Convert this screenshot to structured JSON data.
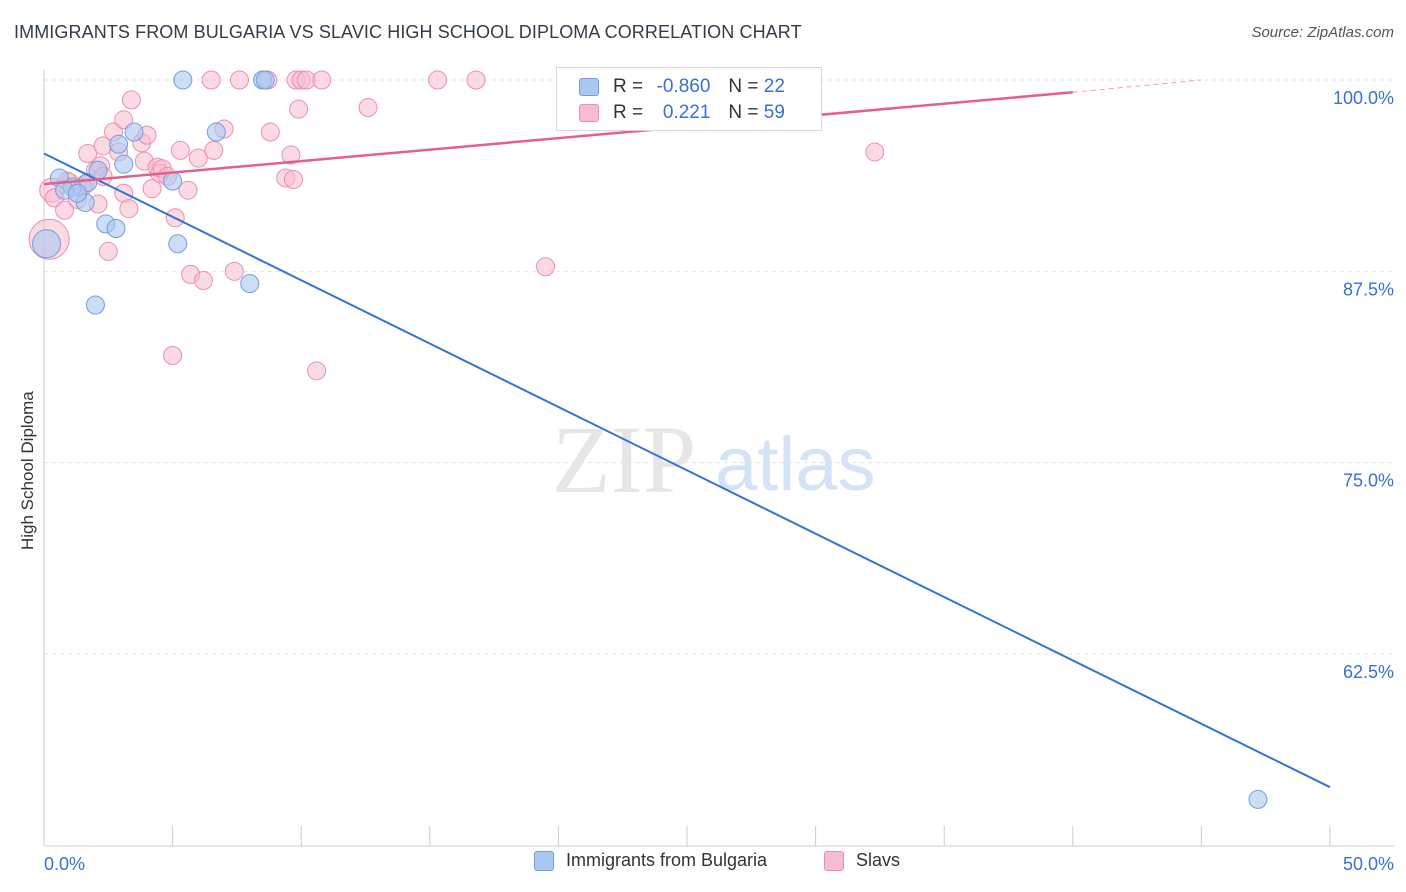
{
  "header": {
    "title": "IMMIGRANTS FROM BULGARIA VS SLAVIC HIGH SCHOOL DIPLOMA CORRELATION CHART",
    "source": "Source: ZipAtlas.com"
  },
  "watermark": {
    "zip": "ZIP",
    "atlas": "atlas"
  },
  "stats_legend": {
    "rows": [
      {
        "r_label": "R =",
        "r_value": "-0.860",
        "n_label": "N =",
        "n_value": "22"
      },
      {
        "r_label": "R =",
        "r_value": "0.221",
        "n_label": "N =",
        "n_value": "59"
      }
    ]
  },
  "colors": {
    "blue_fill": "#aac8f0",
    "blue_stroke": "#6f9fe0",
    "blue_line": "#3274d6",
    "pink_fill": "#f7bccd",
    "pink_stroke": "#ec8fad",
    "pink_line": "#e4608a",
    "tick_label": "#3a6fd8",
    "grid": "#e3e3e3"
  },
  "chart_data": {
    "type": "scatter",
    "title": "IMMIGRANTS FROM BULGARIA VS SLAVIC HIGH SCHOOL DIPLOMA CORRELATION CHART",
    "xlabel": "",
    "ylabel": "High School Diploma",
    "xlim": [
      0,
      50
    ],
    "ylim": [
      50.5,
      101
    ],
    "x_tick_labels": [
      "0.0%",
      "50.0%"
    ],
    "y_ticks": [
      {
        "value": 100,
        "label": "100.0%"
      },
      {
        "value": 87.5,
        "label": "87.5%"
      },
      {
        "value": 75,
        "label": "75.0%"
      },
      {
        "value": 62.5,
        "label": "62.5%"
      }
    ],
    "grid": "horizontal dashed",
    "legend": "bottom-center",
    "series": [
      {
        "name": "Immigrants from Bulgaria",
        "color": "blue",
        "trend": {
          "x": [
            0,
            50
          ],
          "y": [
            95.2,
            53.8
          ]
        },
        "points": [
          [
            0.1,
            89.3,
            14
          ],
          [
            0.6,
            93.6,
            9
          ],
          [
            1.1,
            93.0,
            9
          ],
          [
            0.8,
            92.8,
            9
          ],
          [
            1.6,
            92.0,
            9
          ],
          [
            1.7,
            93.3,
            9
          ],
          [
            2.1,
            94.1,
            9
          ],
          [
            2.4,
            90.6,
            9
          ],
          [
            2.8,
            90.3,
            9
          ],
          [
            2.9,
            95.8,
            9
          ],
          [
            3.1,
            94.5,
            9
          ],
          [
            3.5,
            96.6,
            9
          ],
          [
            5.0,
            93.4,
            9
          ],
          [
            5.2,
            89.3,
            9
          ],
          [
            5.4,
            100.0,
            9
          ],
          [
            6.7,
            96.6,
            9
          ],
          [
            8.0,
            86.7,
            9
          ],
          [
            8.5,
            100.0,
            9
          ],
          [
            8.6,
            100.0,
            9
          ],
          [
            2.0,
            85.3,
            9
          ],
          [
            1.3,
            92.6,
            9
          ],
          [
            47.2,
            53.0,
            9
          ]
        ]
      },
      {
        "name": "Slavs",
        "color": "pink",
        "trend": {
          "x": [
            0,
            40
          ],
          "y": [
            93.2,
            99.2
          ]
        },
        "trend_dashed": {
          "x": [
            40,
            45
          ],
          "y": [
            99.2,
            100.0
          ]
        },
        "points": [
          [
            0.2,
            89.6,
            20
          ],
          [
            0.3,
            92.8,
            12
          ],
          [
            0.4,
            92.3,
            9
          ],
          [
            0.8,
            91.5,
            9
          ],
          [
            1.0,
            93.3,
            9
          ],
          [
            1.3,
            92.2,
            9
          ],
          [
            1.6,
            93.2,
            9
          ],
          [
            1.7,
            95.2,
            9
          ],
          [
            2.0,
            94.1,
            9
          ],
          [
            2.1,
            91.9,
            9
          ],
          [
            2.2,
            94.4,
            9
          ],
          [
            2.3,
            95.7,
            9
          ],
          [
            2.5,
            88.8,
            9
          ],
          [
            2.7,
            96.6,
            9
          ],
          [
            2.9,
            95.3,
            9
          ],
          [
            3.1,
            92.6,
            9
          ],
          [
            3.1,
            97.4,
            9
          ],
          [
            3.3,
            91.6,
            9
          ],
          [
            3.4,
            98.7,
            9
          ],
          [
            3.8,
            95.9,
            9
          ],
          [
            3.9,
            94.7,
            9
          ],
          [
            4.0,
            96.4,
            9
          ],
          [
            4.2,
            92.9,
            9
          ],
          [
            4.4,
            94.3,
            9
          ],
          [
            4.5,
            93.9,
            9
          ],
          [
            4.6,
            94.2,
            9
          ],
          [
            4.8,
            93.7,
            9
          ],
          [
            5.0,
            82.0,
            9
          ],
          [
            5.1,
            91.0,
            9
          ],
          [
            5.3,
            95.4,
            9
          ],
          [
            5.6,
            92.8,
            9
          ],
          [
            5.7,
            87.3,
            9
          ],
          [
            6.0,
            94.9,
            9
          ],
          [
            6.2,
            86.9,
            9
          ],
          [
            6.5,
            100.0,
            9
          ],
          [
            6.6,
            95.4,
            9
          ],
          [
            7.0,
            96.8,
            9
          ],
          [
            7.4,
            87.5,
            9
          ],
          [
            7.6,
            100.0,
            9
          ],
          [
            8.7,
            100.0,
            9
          ],
          [
            8.8,
            96.6,
            9
          ],
          [
            9.4,
            93.6,
            9
          ],
          [
            9.6,
            95.1,
            9
          ],
          [
            9.7,
            93.5,
            9
          ],
          [
            9.8,
            100.0,
            9
          ],
          [
            9.9,
            98.1,
            9
          ],
          [
            10.0,
            100.0,
            9
          ],
          [
            10.2,
            100.0,
            9
          ],
          [
            10.6,
            81.0,
            9
          ],
          [
            10.8,
            100.0,
            9
          ],
          [
            12.6,
            98.2,
            9
          ],
          [
            15.3,
            100.0,
            9
          ],
          [
            16.8,
            100.0,
            9
          ],
          [
            19.5,
            87.8,
            9
          ],
          [
            28.6,
            98.2,
            9
          ],
          [
            32.3,
            95.3,
            9
          ],
          [
            2.3,
            93.7,
            9
          ],
          [
            1.5,
            93.0,
            9
          ],
          [
            0.9,
            93.4,
            9
          ]
        ]
      }
    ]
  },
  "bottom_legend": {
    "items": [
      {
        "label": "Immigrants from Bulgaria"
      },
      {
        "label": "Slavs"
      }
    ]
  }
}
